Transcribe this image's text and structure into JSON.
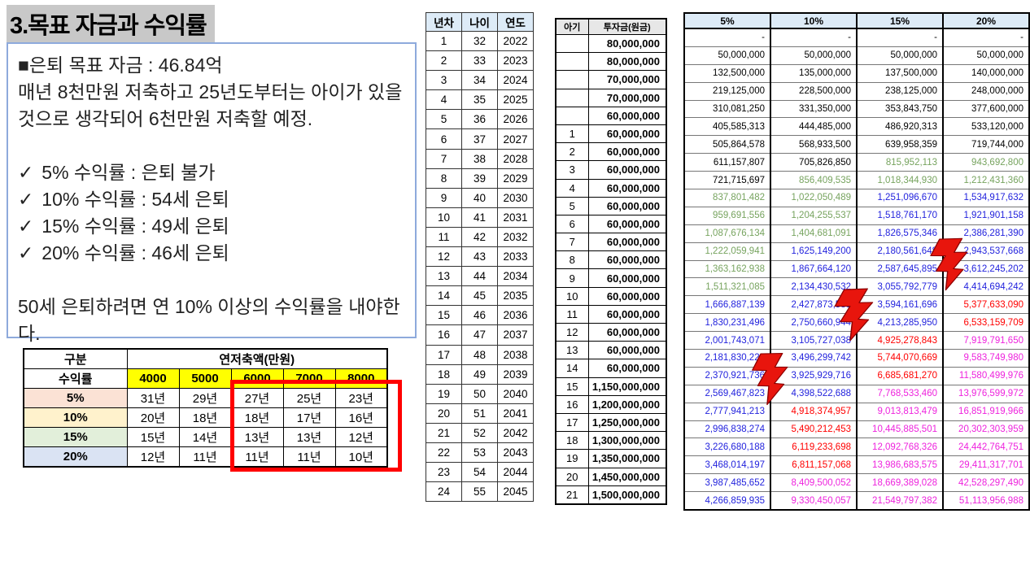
{
  "title": "3.목표 자금과 수익률",
  "note_box": {
    "goal_line": "■은퇴 목표 자금 : 46.84억",
    "plan_line": "매년 8천만원 저축하고 25년도부터는 아이가 있을 것으로 생각되어 6천만원 저축할 예정.",
    "check_glyph": "✓",
    "checks": [
      "5% 수익률 : 은퇴 불가",
      "10% 수익률 : 54세 은퇴",
      "15% 수익률 : 49세 은퇴",
      "20% 수익률 : 46세 은퇴"
    ],
    "footer": "50세 은퇴하려면 연 10% 이상의 수익률을 내야한다."
  },
  "savings_table": {
    "corner_label": "구분",
    "span_header": "연저축액(만원)",
    "row_label_header": "수익률",
    "amount_headers": [
      "4000",
      "5000",
      "6000",
      "7000",
      "8000"
    ],
    "rows": [
      {
        "rate": "5%",
        "bg": "#FBE2D5",
        "values": [
          "31년",
          "29년",
          "27년",
          "25년",
          "23년"
        ]
      },
      {
        "rate": "10%",
        "bg": "#FFF2CC",
        "values": [
          "20년",
          "18년",
          "18년",
          "17년",
          "16년"
        ]
      },
      {
        "rate": "15%",
        "bg": "#E2EFDA",
        "values": [
          "15년",
          "14년",
          "13년",
          "13년",
          "12년"
        ]
      },
      {
        "rate": "20%",
        "bg": "#DAE3F3",
        "values": [
          "12년",
          "11년",
          "11년",
          "11년",
          "10년"
        ]
      }
    ]
  },
  "year_table": {
    "headers": [
      "년차",
      "나이",
      "연도"
    ],
    "rows": [
      [
        "1",
        "32",
        "2022"
      ],
      [
        "2",
        "33",
        "2023"
      ],
      [
        "3",
        "34",
        "2024"
      ],
      [
        "4",
        "35",
        "2025"
      ],
      [
        "5",
        "36",
        "2026"
      ],
      [
        "6",
        "37",
        "2027"
      ],
      [
        "7",
        "38",
        "2028"
      ],
      [
        "8",
        "39",
        "2029"
      ],
      [
        "9",
        "40",
        "2030"
      ],
      [
        "10",
        "41",
        "2031"
      ],
      [
        "11",
        "42",
        "2032"
      ],
      [
        "12",
        "43",
        "2033"
      ],
      [
        "13",
        "44",
        "2034"
      ],
      [
        "14",
        "45",
        "2035"
      ],
      [
        "15",
        "46",
        "2036"
      ],
      [
        "16",
        "47",
        "2037"
      ],
      [
        "17",
        "48",
        "2038"
      ],
      [
        "18",
        "49",
        "2039"
      ],
      [
        "19",
        "50",
        "2040"
      ],
      [
        "20",
        "51",
        "2041"
      ],
      [
        "21",
        "52",
        "2042"
      ],
      [
        "22",
        "53",
        "2043"
      ],
      [
        "23",
        "54",
        "2044"
      ],
      [
        "24",
        "55",
        "2045"
      ]
    ]
  },
  "baby_table": {
    "headers": [
      "아기",
      "투자금(원금)"
    ],
    "rows": [
      [
        "",
        "80,000,000"
      ],
      [
        "",
        "80,000,000"
      ],
      [
        "",
        "70,000,000"
      ],
      [
        "",
        "70,000,000"
      ],
      [
        "",
        "60,000,000"
      ],
      [
        "1",
        "60,000,000"
      ],
      [
        "2",
        "60,000,000"
      ],
      [
        "3",
        "60,000,000"
      ],
      [
        "4",
        "60,000,000"
      ],
      [
        "5",
        "60,000,000"
      ],
      [
        "6",
        "60,000,000"
      ],
      [
        "7",
        "60,000,000"
      ],
      [
        "8",
        "60,000,000"
      ],
      [
        "9",
        "60,000,000"
      ],
      [
        "10",
        "60,000,000"
      ],
      [
        "11",
        "60,000,000"
      ],
      [
        "12",
        "60,000,000"
      ],
      [
        "13",
        "60,000,000"
      ],
      [
        "14",
        "60,000,000"
      ],
      [
        "15",
        "1,150,000,000"
      ],
      [
        "16",
        "1,200,000,000"
      ],
      [
        "17",
        "1,250,000,000"
      ],
      [
        "18",
        "1,300,000,000"
      ],
      [
        "19",
        "1,350,000,000"
      ],
      [
        "20",
        "1,450,000,000"
      ],
      [
        "21",
        "1,500,000,000"
      ]
    ]
  },
  "projection_table": {
    "headers": [
      "5%",
      "10%",
      "15%",
      "20%"
    ],
    "color_legend": {
      "k": "black",
      "g": "green",
      "b": "blue",
      "r": "red",
      "m": "magenta"
    },
    "rows": [
      [
        [
          "-",
          "k"
        ],
        [
          "-",
          "k"
        ],
        [
          "-",
          "k"
        ],
        [
          "-",
          "k"
        ]
      ],
      [
        [
          "50,000,000",
          "k"
        ],
        [
          "50,000,000",
          "k"
        ],
        [
          "50,000,000",
          "k"
        ],
        [
          "50,000,000",
          "k"
        ]
      ],
      [
        [
          "132,500,000",
          "k"
        ],
        [
          "135,000,000",
          "k"
        ],
        [
          "137,500,000",
          "k"
        ],
        [
          "140,000,000",
          "k"
        ]
      ],
      [
        [
          "219,125,000",
          "k"
        ],
        [
          "228,500,000",
          "k"
        ],
        [
          "238,125,000",
          "k"
        ],
        [
          "248,000,000",
          "k"
        ]
      ],
      [
        [
          "310,081,250",
          "k"
        ],
        [
          "331,350,000",
          "k"
        ],
        [
          "353,843,750",
          "k"
        ],
        [
          "377,600,000",
          "k"
        ]
      ],
      [
        [
          "405,585,313",
          "k"
        ],
        [
          "444,485,000",
          "k"
        ],
        [
          "486,920,313",
          "k"
        ],
        [
          "533,120,000",
          "k"
        ]
      ],
      [
        [
          "505,864,578",
          "k"
        ],
        [
          "568,933,500",
          "k"
        ],
        [
          "639,958,359",
          "k"
        ],
        [
          "719,744,000",
          "k"
        ]
      ],
      [
        [
          "611,157,807",
          "k"
        ],
        [
          "705,826,850",
          "k"
        ],
        [
          "815,952,113",
          "g"
        ],
        [
          "943,692,800",
          "g"
        ]
      ],
      [
        [
          "721,715,697",
          "k"
        ],
        [
          "856,409,535",
          "g"
        ],
        [
          "1,018,344,930",
          "g"
        ],
        [
          "1,212,431,360",
          "g"
        ]
      ],
      [
        [
          "837,801,482",
          "g"
        ],
        [
          "1,022,050,489",
          "g"
        ],
        [
          "1,251,096,670",
          "b"
        ],
        [
          "1,534,917,632",
          "b"
        ]
      ],
      [
        [
          "959,691,556",
          "g"
        ],
        [
          "1,204,255,537",
          "g"
        ],
        [
          "1,518,761,170",
          "b"
        ],
        [
          "1,921,901,158",
          "b"
        ]
      ],
      [
        [
          "1,087,676,134",
          "g"
        ],
        [
          "1,404,681,091",
          "g"
        ],
        [
          "1,826,575,346",
          "b"
        ],
        [
          "2,386,281,390",
          "b"
        ]
      ],
      [
        [
          "1,222,059,941",
          "g"
        ],
        [
          "1,625,149,200",
          "b"
        ],
        [
          "2,180,561,648",
          "b"
        ],
        [
          "2,943,537,668",
          "b"
        ]
      ],
      [
        [
          "1,363,162,938",
          "g"
        ],
        [
          "1,867,664,120",
          "b"
        ],
        [
          "2,587,645,895",
          "b"
        ],
        [
          "3,612,245,202",
          "b"
        ]
      ],
      [
        [
          "1,511,321,085",
          "g"
        ],
        [
          "2,134,430,532",
          "b"
        ],
        [
          "3,055,792,779",
          "b"
        ],
        [
          "4,414,694,242",
          "b"
        ]
      ],
      [
        [
          "1,666,887,139",
          "b"
        ],
        [
          "2,427,873,585",
          "b"
        ],
        [
          "3,594,161,696",
          "b"
        ],
        [
          "5,377,633,090",
          "r"
        ]
      ],
      [
        [
          "1,830,231,496",
          "b"
        ],
        [
          "2,750,660,944",
          "b"
        ],
        [
          "4,213,285,950",
          "b"
        ],
        [
          "6,533,159,709",
          "r"
        ]
      ],
      [
        [
          "2,001,743,071",
          "b"
        ],
        [
          "3,105,727,038",
          "b"
        ],
        [
          "4,925,278,843",
          "r"
        ],
        [
          "7,919,791,650",
          "m"
        ]
      ],
      [
        [
          "2,181,830,224",
          "b"
        ],
        [
          "3,496,299,742",
          "b"
        ],
        [
          "5,744,070,669",
          "r"
        ],
        [
          "9,583,749,980",
          "m"
        ]
      ],
      [
        [
          "2,370,921,736",
          "b"
        ],
        [
          "3,925,929,716",
          "b"
        ],
        [
          "6,685,681,270",
          "r"
        ],
        [
          "11,580,499,976",
          "m"
        ]
      ],
      [
        [
          "2,569,467,823",
          "b"
        ],
        [
          "4,398,522,688",
          "b"
        ],
        [
          "7,768,533,460",
          "m"
        ],
        [
          "13,976,599,972",
          "m"
        ]
      ],
      [
        [
          "2,777,941,213",
          "b"
        ],
        [
          "4,918,374,957",
          "r"
        ],
        [
          "9,013,813,479",
          "m"
        ],
        [
          "16,851,919,966",
          "m"
        ]
      ],
      [
        [
          "2,996,838,274",
          "b"
        ],
        [
          "5,490,212,453",
          "r"
        ],
        [
          "10,445,885,501",
          "m"
        ],
        [
          "20,302,303,959",
          "m"
        ]
      ],
      [
        [
          "3,226,680,188",
          "b"
        ],
        [
          "6,119,233,698",
          "r"
        ],
        [
          "12,092,768,326",
          "m"
        ],
        [
          "24,442,764,751",
          "m"
        ]
      ],
      [
        [
          "3,468,014,197",
          "b"
        ],
        [
          "6,811,157,068",
          "r"
        ],
        [
          "13,986,683,575",
          "m"
        ],
        [
          "29,411,317,701",
          "m"
        ]
      ],
      [
        [
          "3,987,485,652",
          "b"
        ],
        [
          "8,409,500,052",
          "m"
        ],
        [
          "18,669,389,028",
          "m"
        ],
        [
          "42,528,297,490",
          "m"
        ]
      ],
      [
        [
          "4,266,859,935",
          "b"
        ],
        [
          "9,330,450,057",
          "m"
        ],
        [
          "21,549,797,382",
          "m"
        ],
        [
          "51,113,956,988",
          "m"
        ]
      ]
    ]
  },
  "colors": {
    "title_highlight": "#C8C8C8",
    "note_border": "#8EAADC",
    "header_blue": "#DDEBF7",
    "header_gray": "#E7E7E7",
    "yellow": "#FFFF00",
    "font_green": "#76A35E",
    "font_blue": "#2222DD",
    "font_red": "#FF0000",
    "font_magenta": "#EE22DD",
    "bolt_red": "#E8150D",
    "bolt_outline": "#8B0000",
    "red_box": "#FF0000"
  }
}
